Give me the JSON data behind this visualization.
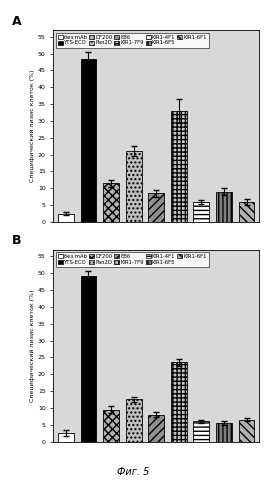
{
  "panel_A": {
    "values": [
      2.5,
      48.5,
      11.5,
      21.0,
      8.5,
      33.0,
      6.0,
      9.0,
      6.0
    ],
    "errors": [
      0.5,
      2.0,
      1.0,
      1.5,
      1.0,
      3.5,
      0.5,
      1.0,
      0.8
    ]
  },
  "panel_B": {
    "values": [
      2.5,
      49.0,
      9.5,
      12.5,
      8.0,
      23.5,
      6.0,
      5.5,
      6.5
    ],
    "errors": [
      0.8,
      1.5,
      1.0,
      0.8,
      0.7,
      1.0,
      0.5,
      0.5,
      0.5
    ]
  },
  "series_labels": [
    "без mAb",
    "YTS-ECO",
    "DF200",
    "Pan2D",
    "EB6",
    "KIR1-7F9",
    "KIR1-4F1",
    "KIR1-6F5",
    "KIR1-6F1"
  ],
  "legend_row1": [
    "без mAb",
    "YTS-ECO",
    "DF200",
    "Pan2D",
    "EB6"
  ],
  "legend_row2": [
    "KIR1-7F9",
    "KIR1-4F1",
    "KIR1-6F5",
    "KIR1-6F1"
  ],
  "ylabel": "Специфический лизис клеток (%)",
  "fig_label": "Фиг. 5",
  "ylim": [
    0,
    57
  ],
  "yticks": [
    0,
    5,
    10,
    15,
    20,
    25,
    30,
    35,
    40,
    45,
    50,
    55
  ],
  "bg_color": "#d8d8d8"
}
